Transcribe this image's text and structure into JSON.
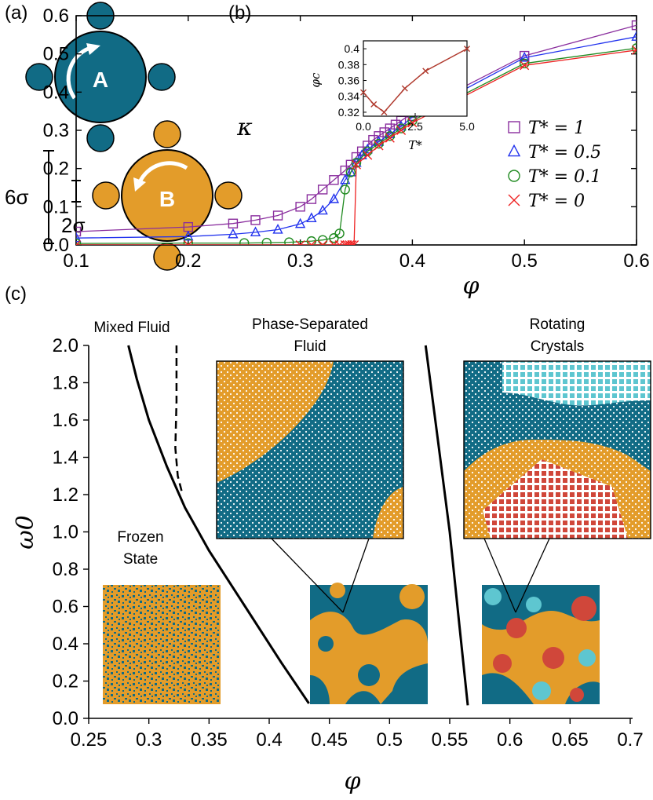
{
  "panel_labels": {
    "a": "(a)",
    "b": "(b)",
    "c": "(c)"
  },
  "colors": {
    "teal": "#116b85",
    "orange": "#e39c2a",
    "light_teal": "#5ec6d0",
    "red": "#d0473a",
    "purple": "#8a2e9e",
    "blue": "#2233ee",
    "green": "#1f8a1f",
    "xred": "#ee2222",
    "inset": "#b03a2e"
  },
  "panel_a": {
    "particle_a_label": "A",
    "particle_b_label": "B",
    "size_large": "6σ",
    "size_small": "2σ"
  },
  "chart_data": [
    {
      "type": "line",
      "panel": "b",
      "ylabel": "κ",
      "xlabel": "φ",
      "xlim": [
        0.1,
        0.6
      ],
      "ylim": [
        0.0,
        0.6
      ],
      "xticks": [
        "0.1",
        "0.2",
        "0.3",
        "0.4",
        "0.5",
        "0.6"
      ],
      "yticks": [
        "0.0",
        "0.1",
        "0.2",
        "0.3",
        "0.4",
        "0.5",
        "0.6"
      ],
      "legend_position": "right",
      "series": [
        {
          "name": "T* = 1",
          "marker": "square",
          "color": "#8a2e9e",
          "x": [
            0.1,
            0.2,
            0.24,
            0.26,
            0.28,
            0.3,
            0.31,
            0.32,
            0.33,
            0.34,
            0.345,
            0.35,
            0.355,
            0.36,
            0.365,
            0.37,
            0.375,
            0.38,
            0.385,
            0.39,
            0.4,
            0.5,
            0.6
          ],
          "y": [
            0.035,
            0.047,
            0.056,
            0.065,
            0.077,
            0.1,
            0.12,
            0.145,
            0.17,
            0.195,
            0.21,
            0.23,
            0.245,
            0.26,
            0.275,
            0.285,
            0.295,
            0.305,
            0.315,
            0.325,
            0.345,
            0.495,
            0.575
          ]
        },
        {
          "name": "T* = 0.5",
          "marker": "triangle",
          "color": "#2233ee",
          "x": [
            0.1,
            0.2,
            0.24,
            0.26,
            0.28,
            0.3,
            0.31,
            0.32,
            0.33,
            0.34,
            0.345,
            0.35,
            0.355,
            0.36,
            0.37,
            0.38,
            0.39,
            0.4,
            0.5,
            0.6
          ],
          "y": [
            0.018,
            0.022,
            0.028,
            0.033,
            0.04,
            0.055,
            0.07,
            0.09,
            0.12,
            0.17,
            0.19,
            0.215,
            0.235,
            0.25,
            0.27,
            0.29,
            0.31,
            0.335,
            0.49,
            0.545
          ]
        },
        {
          "name": "T* = 0.1",
          "marker": "circle",
          "color": "#1f8a1f",
          "x": [
            0.1,
            0.2,
            0.25,
            0.27,
            0.29,
            0.31,
            0.32,
            0.33,
            0.335,
            0.34,
            0.345,
            0.35,
            0.36,
            0.37,
            0.38,
            0.39,
            0.4,
            0.5,
            0.6
          ],
          "y": [
            0.004,
            0.005,
            0.005,
            0.006,
            0.007,
            0.01,
            0.013,
            0.018,
            0.03,
            0.145,
            0.19,
            0.215,
            0.245,
            0.265,
            0.285,
            0.305,
            0.325,
            0.475,
            0.515
          ]
        },
        {
          "name": "T* = 0",
          "marker": "x",
          "color": "#ee2222",
          "x": [
            0.1,
            0.2,
            0.3,
            0.31,
            0.32,
            0.33,
            0.335,
            0.34,
            0.342,
            0.344,
            0.346,
            0.348,
            0.35,
            0.36,
            0.37,
            0.38,
            0.39,
            0.4,
            0.5,
            0.6
          ],
          "y": [
            0.0,
            0.0,
            0.0,
            0.0,
            0.0,
            0.0,
            0.0,
            0.0,
            0.0,
            0.0,
            0.0,
            0.0,
            0.21,
            0.235,
            0.26,
            0.28,
            0.3,
            0.32,
            0.47,
            0.51
          ]
        }
      ],
      "inset": {
        "xlabel": "T*",
        "ylabel": "φc",
        "xlim": [
          0.0,
          5.0
        ],
        "ylim": [
          0.315,
          0.41
        ],
        "xticks": [
          "0.0",
          "2.5",
          "5.0"
        ],
        "yticks": [
          "0.32",
          "0.34",
          "0.36",
          "0.38",
          "0.4"
        ],
        "x": [
          0.0,
          0.5,
          1.0,
          2.0,
          3.0,
          5.0
        ],
        "y": [
          0.345,
          0.33,
          0.32,
          0.35,
          0.372,
          0.4
        ]
      }
    },
    {
      "type": "line",
      "panel": "c",
      "ylabel": "ω0",
      "xlabel": "φ",
      "xlim": [
        0.25,
        0.7
      ],
      "ylim": [
        0.0,
        2.0
      ],
      "xticks": [
        "0.25",
        "0.3",
        "0.35",
        "0.4",
        "0.45",
        "0.5",
        "0.55",
        "0.6",
        "0.65",
        "0.7"
      ],
      "yticks": [
        "0.0",
        "0.2",
        "0.4",
        "0.6",
        "0.8",
        "1.0",
        "1.2",
        "1.4",
        "1.6",
        "1.8",
        "2.0"
      ],
      "boundaries": [
        {
          "style": "solid",
          "x": [
            0.283,
            0.29,
            0.3,
            0.315,
            0.33,
            0.35,
            0.38,
            0.41,
            0.433
          ],
          "y": [
            2.0,
            1.82,
            1.6,
            1.35,
            1.13,
            0.9,
            0.6,
            0.3,
            0.08
          ]
        },
        {
          "style": "dashed",
          "x": [
            0.323,
            0.323,
            0.322,
            0.324,
            0.328
          ],
          "y": [
            2.0,
            1.7,
            1.45,
            1.3,
            1.2
          ]
        },
        {
          "style": "solid",
          "x": [
            0.53,
            0.54,
            0.55,
            0.558,
            0.565
          ],
          "y": [
            2.0,
            1.5,
            1.0,
            0.5,
            0.07
          ]
        }
      ],
      "region_labels": {
        "mixed": "Mixed Fluid",
        "phase_sep_1": "Phase-Separated",
        "phase_sep_2": "Fluid",
        "rotating_1": "Rotating",
        "rotating_2": "Crystals",
        "frozen_1": "Frozen",
        "frozen_2": "State"
      }
    }
  ]
}
